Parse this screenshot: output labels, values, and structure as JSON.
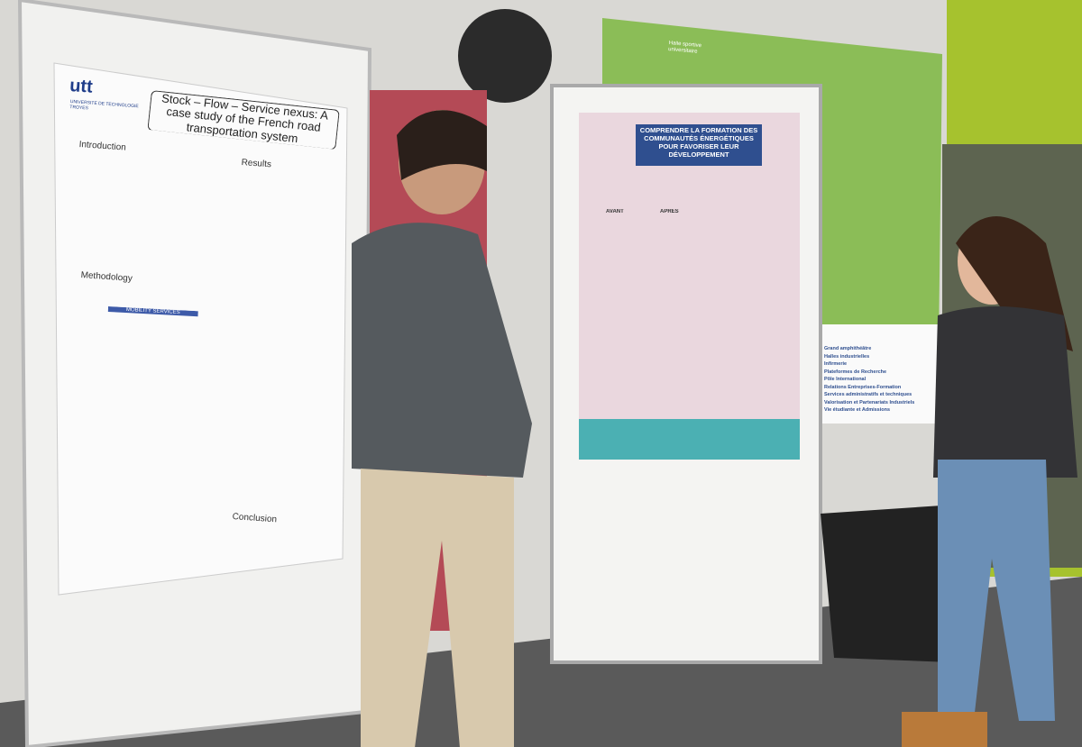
{
  "left_poster": {
    "logo": "utt",
    "institution": "UNIVERSITÉ DE TECHNOLOGIE TROYES",
    "title": "Stock – Flow – Service nexus: A case study of the French road transportation system",
    "sections": [
      "Introduction",
      "Results",
      "Methodology",
      "Conclusion"
    ],
    "box_label": "MOBILITY SERVICES"
  },
  "center_poster": {
    "title": "COMPRENDRE LA FORMATION DES COMMUNAUTÉS ÉNERGÉTIQUES POUR FAVORISER LEUR DÉVELOPPEMENT",
    "columns": [
      "AVANT",
      "APRÈS"
    ]
  },
  "map": {
    "building": "Halle sportive universitaire",
    "legend": [
      "Grand amphithéâtre",
      "Halles industrielles",
      "Infirmerie",
      "Plateformes de Recherche",
      "Pôle International",
      "Relations Entreprises-Formation",
      "Services administratifs et techniques",
      "Valorisation et Partenariats Industriels",
      "Vie étudiante et Admissions"
    ]
  }
}
